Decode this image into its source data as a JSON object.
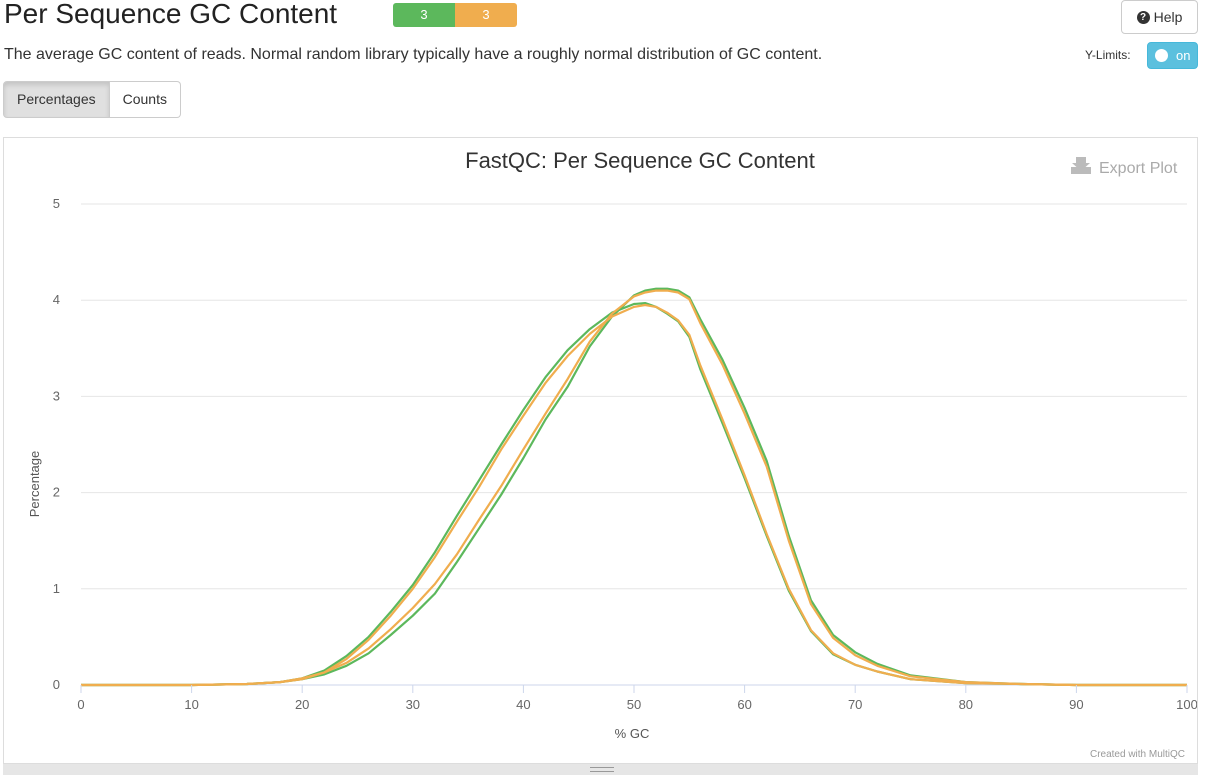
{
  "header": {
    "title": "Per Sequence GC Content",
    "status_pass": "3",
    "status_warn": "3",
    "help_label": "Help"
  },
  "description": "The average GC content of reads. Normal random library typically have a roughly normal distribution of GC content.",
  "ylimits": {
    "label": "Y-Limits:",
    "toggle": "on"
  },
  "tabs": [
    {
      "label": "Percentages",
      "active": true
    },
    {
      "label": "Counts",
      "active": false
    }
  ],
  "plot": {
    "export_label": "Export Plot",
    "credit": "Created with MultiQC"
  },
  "colors": {
    "pass": "#5cb85c",
    "warn": "#f0ad4e",
    "toggle": "#5bc0de"
  },
  "chart_data": {
    "type": "line",
    "title": "FastQC: Per Sequence GC Content",
    "xlabel": "% GC",
    "ylabel": "Percentage",
    "xlim": [
      0,
      100
    ],
    "ylim": [
      0,
      5
    ],
    "xticks": [
      0,
      10,
      20,
      30,
      40,
      50,
      60,
      70,
      80,
      90,
      100
    ],
    "yticks": [
      0,
      1,
      2,
      3,
      4,
      5
    ],
    "grid": true,
    "legend": "none",
    "series": [
      {
        "color": "#5cb85c",
        "x": [
          0,
          10,
          15,
          18,
          20,
          22,
          24,
          26,
          28,
          30,
          32,
          34,
          36,
          38,
          40,
          42,
          44,
          46,
          48,
          50,
          51,
          52,
          53,
          54,
          55,
          56,
          58,
          60,
          62,
          64,
          66,
          68,
          70,
          72,
          75,
          80,
          85,
          90,
          100
        ],
        "y": [
          0,
          0,
          0.01,
          0.03,
          0.06,
          0.11,
          0.2,
          0.33,
          0.52,
          0.72,
          0.95,
          1.28,
          1.63,
          1.98,
          2.36,
          2.76,
          3.1,
          3.52,
          3.83,
          4.05,
          4.1,
          4.12,
          4.12,
          4.1,
          4.03,
          3.8,
          3.38,
          2.88,
          2.33,
          1.55,
          0.88,
          0.52,
          0.34,
          0.22,
          0.1,
          0.03,
          0.01,
          0,
          0
        ]
      },
      {
        "color": "#5cb85c",
        "x": [
          0,
          10,
          15,
          18,
          20,
          22,
          24,
          26,
          28,
          30,
          32,
          34,
          36,
          38,
          40,
          42,
          44,
          46,
          48,
          50,
          51,
          52,
          53,
          54,
          55,
          56,
          58,
          60,
          62,
          64,
          66,
          68,
          70,
          72,
          75,
          80,
          85,
          90,
          100
        ],
        "y": [
          0,
          0,
          0.01,
          0.03,
          0.07,
          0.15,
          0.3,
          0.5,
          0.76,
          1.04,
          1.38,
          1.76,
          2.13,
          2.5,
          2.86,
          3.2,
          3.48,
          3.7,
          3.87,
          3.96,
          3.97,
          3.93,
          3.86,
          3.78,
          3.62,
          3.28,
          2.72,
          2.15,
          1.55,
          0.98,
          0.56,
          0.32,
          0.21,
          0.14,
          0.06,
          0.02,
          0.01,
          0,
          0
        ]
      },
      {
        "color": "#f0ad4e",
        "x": [
          0,
          10,
          15,
          18,
          20,
          22,
          24,
          26,
          28,
          30,
          32,
          34,
          36,
          38,
          40,
          42,
          44,
          46,
          48,
          50,
          51,
          52,
          53,
          54,
          55,
          56,
          58,
          60,
          62,
          64,
          66,
          68,
          70,
          72,
          75,
          80,
          85,
          90,
          100
        ],
        "y": [
          0,
          0,
          0.01,
          0.03,
          0.07,
          0.13,
          0.23,
          0.38,
          0.58,
          0.8,
          1.05,
          1.36,
          1.72,
          2.07,
          2.45,
          2.82,
          3.18,
          3.57,
          3.86,
          4.04,
          4.08,
          4.1,
          4.1,
          4.08,
          4.01,
          3.76,
          3.33,
          2.82,
          2.27,
          1.5,
          0.84,
          0.49,
          0.31,
          0.2,
          0.09,
          0.03,
          0.01,
          0,
          0
        ]
      },
      {
        "color": "#f0ad4e",
        "x": [
          0,
          10,
          15,
          18,
          20,
          22,
          24,
          26,
          28,
          30,
          32,
          34,
          36,
          38,
          40,
          42,
          44,
          46,
          48,
          50,
          51,
          52,
          53,
          54,
          55,
          56,
          58,
          60,
          62,
          64,
          66,
          68,
          70,
          72,
          75,
          80,
          85,
          90,
          100
        ],
        "y": [
          0,
          0,
          0.01,
          0.03,
          0.06,
          0.13,
          0.27,
          0.47,
          0.72,
          1.0,
          1.33,
          1.7,
          2.06,
          2.45,
          2.8,
          3.14,
          3.42,
          3.65,
          3.83,
          3.93,
          3.95,
          3.93,
          3.87,
          3.79,
          3.64,
          3.32,
          2.76,
          2.18,
          1.57,
          1.0,
          0.57,
          0.33,
          0.21,
          0.14,
          0.06,
          0.02,
          0.01,
          0,
          0
        ]
      }
    ]
  }
}
